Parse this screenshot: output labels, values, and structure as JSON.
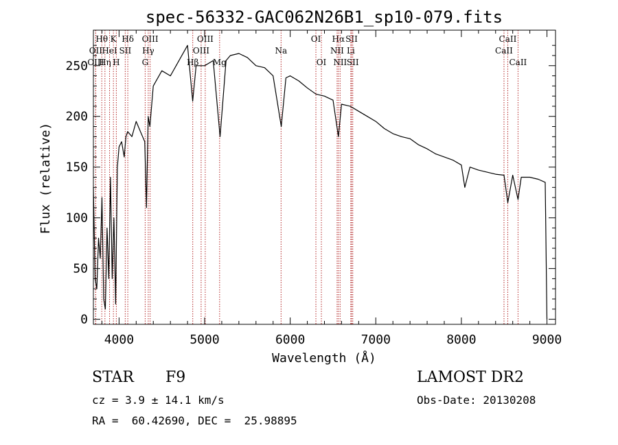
{
  "chart_data": {
    "type": "line",
    "title": "spec-56332-GAC062N26B1_sp10-079.fits",
    "xlabel": "Wavelength (Å)",
    "ylabel": "Flux (relative)",
    "xlim": [
      3700,
      9100
    ],
    "ylim": [
      -5,
      285
    ],
    "x_ticks": [
      4000,
      5000,
      6000,
      7000,
      8000,
      9000
    ],
    "y_ticks": [
      0,
      50,
      100,
      150,
      200,
      250
    ],
    "grid": false,
    "series": [
      {
        "x": [
          3700,
          3720,
          3740,
          3760,
          3780,
          3800,
          3820,
          3840,
          3860,
          3880,
          3900,
          3920,
          3940,
          3960,
          3980,
          4000,
          4030,
          4060,
          4080,
          4100,
          4150,
          4200,
          4250,
          4300,
          4320,
          4340,
          4360,
          4400,
          4500,
          4600,
          4700,
          4800,
          4860,
          4900,
          5000,
          5100,
          5180,
          5250,
          5300,
          5400,
          5500,
          5600,
          5700,
          5800,
          5895,
          5950,
          6000,
          6100,
          6200,
          6300,
          6400,
          6500,
          6563,
          6600,
          6700,
          6800,
          6900,
          7000,
          7100,
          7200,
          7300,
          7400,
          7500,
          7600,
          7700,
          7800,
          7900,
          8000,
          8040,
          8100,
          8200,
          8300,
          8400,
          8498,
          8542,
          8600,
          8662,
          8700,
          8800,
          8900,
          8980,
          9000
        ],
        "values": [
          130,
          40,
          30,
          80,
          60,
          120,
          20,
          10,
          90,
          40,
          140,
          40,
          100,
          15,
          150,
          170,
          175,
          160,
          180,
          185,
          180,
          195,
          185,
          175,
          110,
          200,
          190,
          230,
          245,
          240,
          255,
          270,
          215,
          250,
          250,
          255,
          180,
          255,
          260,
          262,
          258,
          250,
          248,
          240,
          190,
          238,
          240,
          235,
          228,
          222,
          220,
          216,
          180,
          212,
          210,
          205,
          200,
          195,
          188,
          183,
          180,
          178,
          172,
          168,
          163,
          160,
          157,
          152,
          130,
          150,
          147,
          145,
          143,
          142,
          115,
          142,
          118,
          140,
          140,
          138,
          135,
          0
        ]
      }
    ],
    "spectral_lines": [
      {
        "label": "Hθ",
        "x": 3798,
        "row": 1
      },
      {
        "label": "OII",
        "x": 3727,
        "row": 2
      },
      {
        "label": "OIII",
        "x": 3727,
        "row": 3
      },
      {
        "label": "Hη",
        "x": 3835,
        "row": 3
      },
      {
        "label": "HeI",
        "x": 3889,
        "row": 2
      },
      {
        "label": "K",
        "x": 3934,
        "row": 1
      },
      {
        "label": "H",
        "x": 3968,
        "row": 3
      },
      {
        "label": "Hδ",
        "x": 4102,
        "row": 1
      },
      {
        "label": "SII",
        "x": 4072,
        "row": 2
      },
      {
        "label": "OIII",
        "x": 4363,
        "row": 1
      },
      {
        "label": "Hγ",
        "x": 4341,
        "row": 2
      },
      {
        "label": "G",
        "x": 4305,
        "row": 3
      },
      {
        "label": "OIII",
        "x": 5007,
        "row": 1
      },
      {
        "label": "OIII",
        "x": 4959,
        "row": 2
      },
      {
        "label": "Hβ",
        "x": 4861,
        "row": 3
      },
      {
        "label": "Mg",
        "x": 5175,
        "row": 3
      },
      {
        "label": "Na",
        "x": 5893,
        "row": 2
      },
      {
        "label": "OI",
        "x": 6300,
        "row": 1
      },
      {
        "label": "OI",
        "x": 6364,
        "row": 3
      },
      {
        "label": "Hα",
        "x": 6563,
        "row": 1
      },
      {
        "label": "NII",
        "x": 6548,
        "row": 2
      },
      {
        "label": "NII",
        "x": 6583,
        "row": 3
      },
      {
        "label": "SII",
        "x": 6717,
        "row": 1
      },
      {
        "label": "Li",
        "x": 6708,
        "row": 2
      },
      {
        "label": "SII",
        "x": 6731,
        "row": 3
      },
      {
        "label": "CaII",
        "x": 8542,
        "row": 1
      },
      {
        "label": "CaII",
        "x": 8498,
        "row": 2
      },
      {
        "label": "CaII",
        "x": 8662,
        "row": 3
      }
    ]
  },
  "info": {
    "object_type": "STAR",
    "subclass": "F9",
    "survey": "LAMOST DR2",
    "redshift": "cz = 3.9 ± 14.1 km/s",
    "obs_date": "Obs-Date: 20130208",
    "coords": "RA =  60.42690, DEC =  25.98895"
  }
}
